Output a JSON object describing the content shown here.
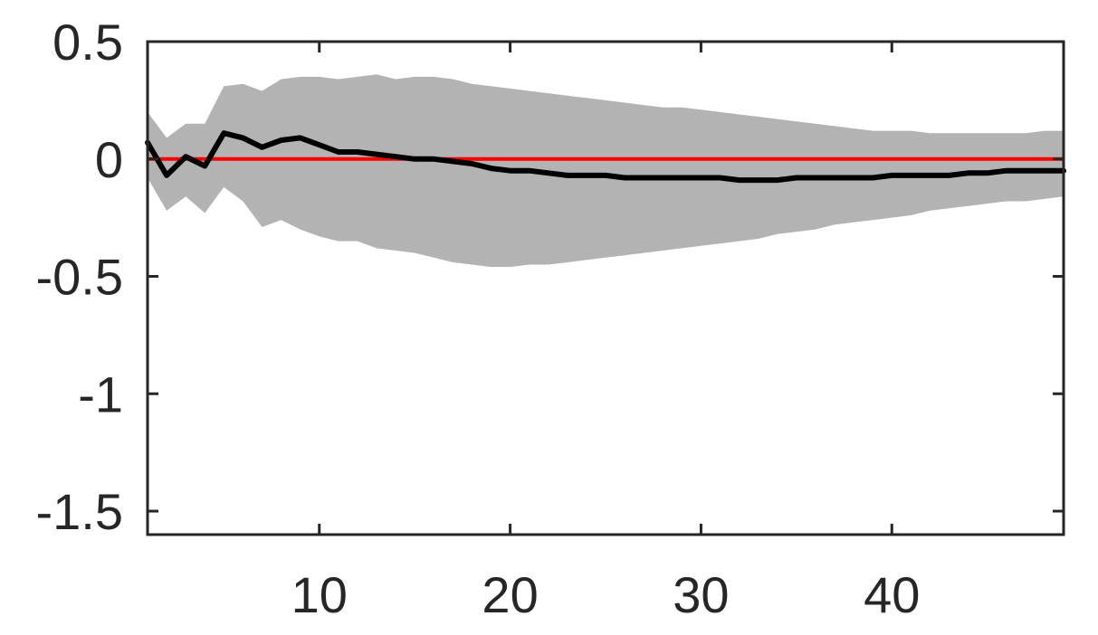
{
  "chart_data": {
    "type": "line",
    "title": "",
    "xlabel": "",
    "ylabel": "",
    "xlim": [
      1,
      49
    ],
    "ylim": [
      -1.6,
      0.5
    ],
    "x_ticks": [
      10,
      20,
      30,
      40
    ],
    "x_tick_labels": [
      "10",
      "20",
      "30",
      "40"
    ],
    "y_ticks": [
      0.5,
      0,
      -0.5,
      -1,
      -1.5
    ],
    "y_tick_labels": [
      "0.5",
      "0",
      "-0.5",
      "-1",
      "-1.5"
    ],
    "grid": false,
    "legend": "none",
    "colors": {
      "line": "#000000",
      "band": "#b3b3b3",
      "reference": "#ff0000",
      "axes": "#262626"
    },
    "reference_line": {
      "y": 0
    },
    "x": [
      1,
      2,
      3,
      4,
      5,
      6,
      7,
      8,
      9,
      10,
      11,
      12,
      13,
      14,
      15,
      16,
      17,
      18,
      19,
      20,
      21,
      22,
      23,
      24,
      25,
      26,
      27,
      28,
      29,
      30,
      31,
      32,
      33,
      34,
      35,
      36,
      37,
      38,
      39,
      40,
      41,
      42,
      43,
      44,
      45,
      46,
      47,
      48,
      49
    ],
    "series": [
      {
        "values": [
          0.07,
          -0.07,
          0.01,
          -0.03,
          0.11,
          0.09,
          0.05,
          0.08,
          0.09,
          0.06,
          0.03,
          0.03,
          0.02,
          0.01,
          0.0,
          0.0,
          -0.01,
          -0.02,
          -0.04,
          -0.05,
          -0.05,
          -0.06,
          -0.07,
          -0.07,
          -0.07,
          -0.08,
          -0.08,
          -0.08,
          -0.08,
          -0.08,
          -0.08,
          -0.09,
          -0.09,
          -0.09,
          -0.08,
          -0.08,
          -0.08,
          -0.08,
          -0.08,
          -0.07,
          -0.07,
          -0.07,
          -0.07,
          -0.06,
          -0.06,
          -0.05,
          -0.05,
          -0.05,
          -0.05
        ]
      }
    ],
    "band": {
      "upper": [
        0.2,
        0.09,
        0.15,
        0.15,
        0.31,
        0.32,
        0.29,
        0.34,
        0.35,
        0.35,
        0.34,
        0.35,
        0.36,
        0.34,
        0.35,
        0.35,
        0.34,
        0.32,
        0.31,
        0.3,
        0.29,
        0.28,
        0.27,
        0.26,
        0.25,
        0.24,
        0.23,
        0.22,
        0.22,
        0.21,
        0.2,
        0.19,
        0.18,
        0.17,
        0.16,
        0.15,
        0.14,
        0.13,
        0.12,
        0.12,
        0.12,
        0.11,
        0.11,
        0.11,
        0.11,
        0.11,
        0.11,
        0.12,
        0.12
      ],
      "lower": [
        -0.08,
        -0.22,
        -0.16,
        -0.23,
        -0.12,
        -0.18,
        -0.29,
        -0.26,
        -0.3,
        -0.33,
        -0.35,
        -0.35,
        -0.38,
        -0.39,
        -0.4,
        -0.42,
        -0.44,
        -0.45,
        -0.46,
        -0.46,
        -0.45,
        -0.45,
        -0.44,
        -0.43,
        -0.42,
        -0.41,
        -0.4,
        -0.39,
        -0.38,
        -0.37,
        -0.36,
        -0.35,
        -0.34,
        -0.32,
        -0.31,
        -0.3,
        -0.28,
        -0.27,
        -0.26,
        -0.25,
        -0.24,
        -0.22,
        -0.21,
        -0.2,
        -0.19,
        -0.18,
        -0.18,
        -0.17,
        -0.16
      ]
    }
  }
}
